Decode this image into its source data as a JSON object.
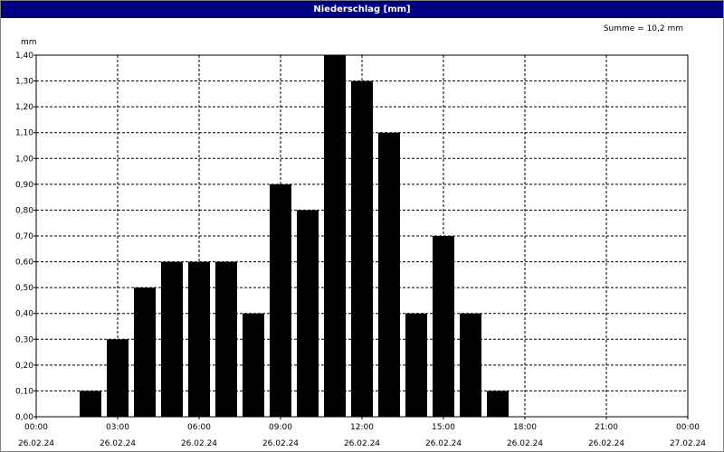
{
  "window": {
    "title": "Niederschlag [mm]"
  },
  "summary": {
    "total_label": "Summe = 10,2 mm"
  },
  "chart_data": {
    "type": "bar",
    "title": "Niederschlag [mm]",
    "ylabel": "mm",
    "ylim": [
      0,
      1.4
    ],
    "y_ticks": [
      "0,00",
      "0,10",
      "0,20",
      "0,30",
      "0,40",
      "0,50",
      "0,60",
      "0,70",
      "0,80",
      "0,90",
      "1,00",
      "1,10",
      "1,20",
      "1,30",
      "1,40"
    ],
    "x_range_hours": [
      0,
      24
    ],
    "x_ticks": [
      {
        "time": "00:00",
        "date": "26.02.24"
      },
      {
        "time": "03:00",
        "date": "26.02.24"
      },
      {
        "time": "06:00",
        "date": "26.02.24"
      },
      {
        "time": "09:00",
        "date": "26.02.24"
      },
      {
        "time": "12:00",
        "date": "26.02.24"
      },
      {
        "time": "15:00",
        "date": "26.02.24"
      },
      {
        "time": "18:00",
        "date": "26.02.24"
      },
      {
        "time": "21:00",
        "date": "26.02.24"
      },
      {
        "time": "00:00",
        "date": "27.02.24"
      }
    ],
    "bars": [
      {
        "hour": 2,
        "value": 0.1
      },
      {
        "hour": 3,
        "value": 0.3
      },
      {
        "hour": 4,
        "value": 0.5
      },
      {
        "hour": 5,
        "value": 0.6
      },
      {
        "hour": 6,
        "value": 0.6
      },
      {
        "hour": 7,
        "value": 0.6
      },
      {
        "hour": 8,
        "value": 0.4
      },
      {
        "hour": 9,
        "value": 0.9
      },
      {
        "hour": 10,
        "value": 0.8
      },
      {
        "hour": 11,
        "value": 1.4
      },
      {
        "hour": 12,
        "value": 1.3
      },
      {
        "hour": 13,
        "value": 1.1
      },
      {
        "hour": 14,
        "value": 0.4
      },
      {
        "hour": 15,
        "value": 0.7
      },
      {
        "hour": 16,
        "value": 0.4
      },
      {
        "hour": 17,
        "value": 0.1
      }
    ],
    "bar_color": "#000000",
    "grid": true,
    "grid_style": "dashed"
  }
}
